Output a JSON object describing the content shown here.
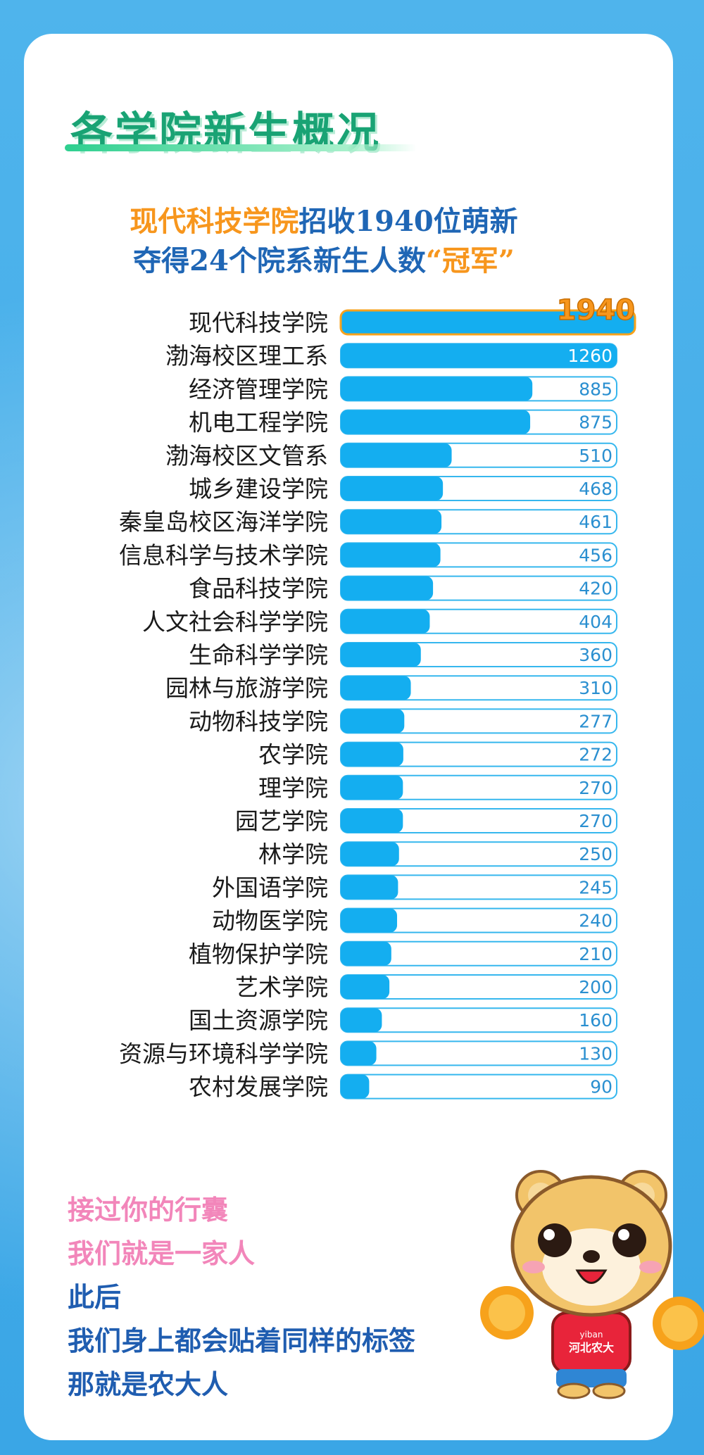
{
  "title": "各学院新生概况",
  "headline": {
    "line1_highlight": "现代科技学院",
    "line1_rest": "招收1940位萌新",
    "line2_rest": "夺得24个院系新生人数",
    "line2_highlight": "“冠军”"
  },
  "chart_data": {
    "type": "bar",
    "orientation": "horizontal",
    "categories": [
      "现代科技学院",
      "渤海校区理工系",
      "经济管理学院",
      "机电工程学院",
      "渤海校区文管系",
      "城乡建设学院",
      "秦皇岛校区海洋学院",
      "信息科学与技术学院",
      "食品科技学院",
      "人文社会科学学院",
      "生命科学学院",
      "园林与旅游学院",
      "动物科技学院",
      "农学院",
      "理学院",
      "园艺学院",
      "林学院",
      "外国语学院",
      "动物医学院",
      "植物保护学院",
      "艺术学院",
      "国土资源学院",
      "资源与环境科学学院",
      "农村发展学院"
    ],
    "values": [
      1940,
      1260,
      885,
      875,
      510,
      468,
      461,
      456,
      420,
      404,
      360,
      310,
      277,
      272,
      270,
      270,
      250,
      245,
      240,
      210,
      200,
      160,
      130,
      90
    ],
    "colors": {
      "bar": "#14aef0",
      "track_border": "#36b7ee",
      "value_text": "#2a8fd0",
      "top_label": "#f7961d"
    }
  },
  "closing": {
    "lines": [
      "接过你的行囊",
      "我们就是一家人",
      "此后",
      "我们身上都会贴着同样的标签",
      "那就是农大人"
    ],
    "colors": [
      "#f286ba",
      "#f286ba",
      "#1f5db0",
      "#1f5db0",
      "#1f5db0"
    ]
  },
  "mascot": {
    "shirt_text": "河北农大",
    "shirt_small": "yiban",
    "icon": "bear-mascot-icon"
  }
}
